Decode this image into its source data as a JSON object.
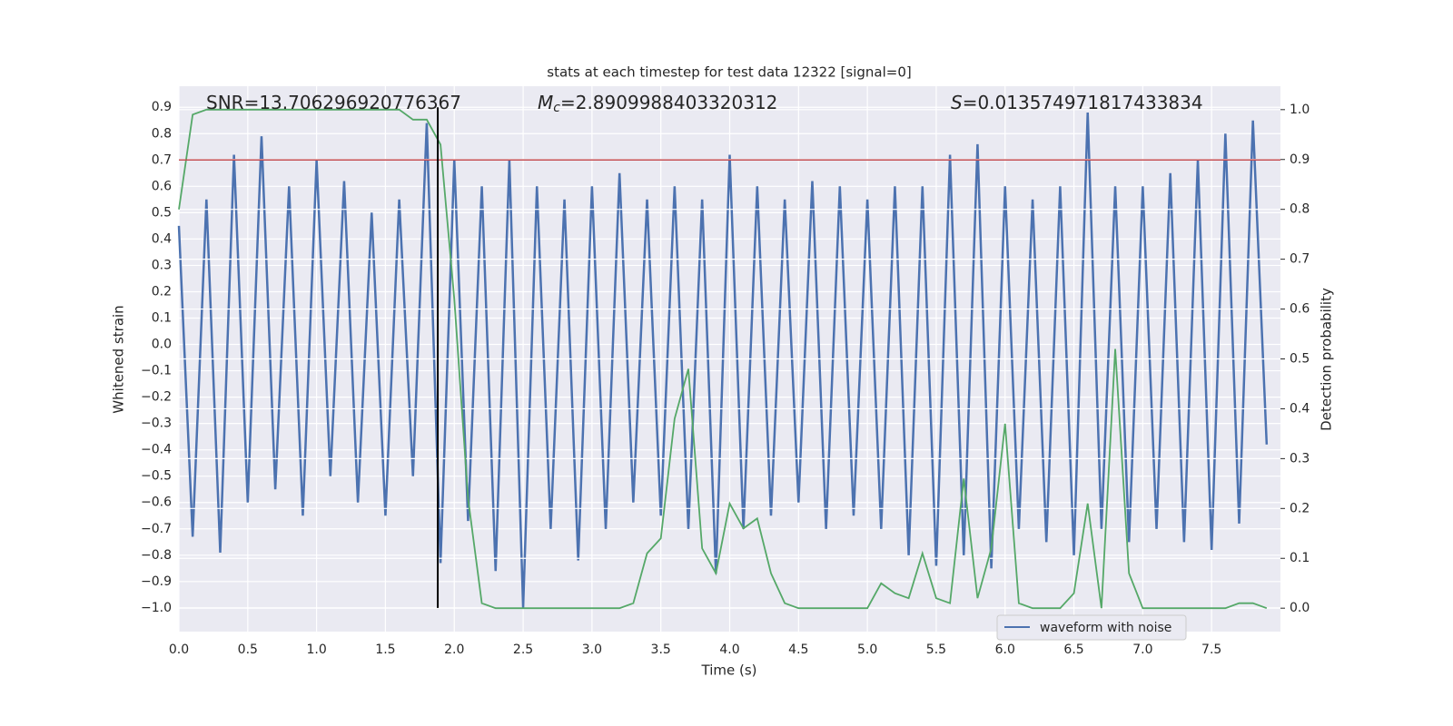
{
  "chart_data": {
    "type": "line",
    "title": "stats at each timestep for test data 12322 [signal=0]",
    "xlabel": "Time (s)",
    "ylabel": "Whitened strain",
    "y2label": "Detection probability",
    "annotations": [
      {
        "symbol": "SNR",
        "value": "=13.706296920776367",
        "italic": false
      },
      {
        "symbol": "M",
        "subscript": "c",
        "value": "=2.8909988403320312",
        "italic": true
      },
      {
        "symbol": "S",
        "value": "=0.013574971817433834",
        "italic": true
      }
    ],
    "x": [
      0.0,
      0.1,
      0.2,
      0.3,
      0.4,
      0.5,
      0.6,
      0.7,
      0.8,
      0.9,
      1.0,
      1.1,
      1.2,
      1.3,
      1.4,
      1.5,
      1.6,
      1.7,
      1.8,
      1.9,
      2.0,
      2.1,
      2.2,
      2.3,
      2.4,
      2.5,
      2.6,
      2.7,
      2.8,
      2.9,
      3.0,
      3.1,
      3.2,
      3.3,
      3.4,
      3.5,
      3.6,
      3.7,
      3.8,
      3.9,
      4.0,
      4.1,
      4.2,
      4.3,
      4.4,
      4.5,
      4.6,
      4.7,
      4.8,
      4.9,
      5.0,
      5.1,
      5.2,
      5.3,
      5.4,
      5.5,
      5.6,
      5.7,
      5.8,
      5.9,
      6.0,
      6.1,
      6.2,
      6.3,
      6.4,
      6.5,
      6.6,
      6.7,
      6.8,
      6.9,
      7.0,
      7.1,
      7.2,
      7.3,
      7.4,
      7.5,
      7.6,
      7.7,
      7.8,
      7.9
    ],
    "series": [
      {
        "name": "waveform with noise",
        "color": "#4c72b0",
        "axis": "y",
        "values": [
          0.45,
          -0.73,
          0.55,
          -0.79,
          0.72,
          -0.6,
          0.79,
          -0.55,
          0.6,
          -0.65,
          0.7,
          -0.5,
          0.62,
          -0.6,
          0.5,
          -0.65,
          0.55,
          -0.5,
          0.84,
          -0.83,
          0.7,
          -0.67,
          0.6,
          -0.86,
          0.7,
          -1.0,
          0.6,
          -0.7,
          0.55,
          -0.82,
          0.6,
          -0.7,
          0.65,
          -0.6,
          0.55,
          -0.65,
          0.6,
          -0.7,
          0.55,
          -0.87,
          0.72,
          -0.7,
          0.6,
          -0.65,
          0.55,
          -0.6,
          0.62,
          -0.7,
          0.6,
          -0.65,
          0.55,
          -0.7,
          0.6,
          -0.8,
          0.6,
          -0.84,
          0.72,
          -0.8,
          0.76,
          -0.85,
          0.6,
          -0.7,
          0.55,
          -0.75,
          0.6,
          -0.8,
          0.88,
          -0.7,
          0.6,
          -0.75,
          0.6,
          -0.7,
          0.65,
          -0.75,
          0.7,
          -0.78,
          0.8,
          -0.68,
          0.85,
          -0.38
        ]
      },
      {
        "color": "#55a868",
        "axis": "y2",
        "values": [
          0.8,
          0.99,
          1.0,
          1.0,
          1.0,
          1.0,
          1.0,
          1.0,
          1.0,
          1.0,
          1.0,
          1.0,
          1.0,
          1.0,
          1.0,
          1.0,
          1.0,
          0.98,
          0.98,
          0.93,
          0.62,
          0.22,
          0.01,
          0.0,
          0.0,
          0.0,
          0.0,
          0.0,
          0.0,
          0.0,
          0.0,
          0.0,
          0.0,
          0.01,
          0.11,
          0.14,
          0.38,
          0.48,
          0.12,
          0.07,
          0.21,
          0.16,
          0.18,
          0.07,
          0.01,
          0.0,
          0.0,
          0.0,
          0.0,
          0.0,
          0.0,
          0.05,
          0.03,
          0.02,
          0.11,
          0.02,
          0.01,
          0.26,
          0.02,
          0.12,
          0.37,
          0.01,
          0.0,
          0.0,
          0.0,
          0.03,
          0.21,
          0.0,
          0.52,
          0.07,
          0.0,
          0.0,
          0.0,
          0.0,
          0.0,
          0.0,
          0.0,
          0.01,
          0.01,
          0.0
        ]
      }
    ],
    "hline": {
      "y": 0.7,
      "color": "#c44e52"
    },
    "vline": {
      "x": 1.88,
      "ymin": -1.0,
      "ymax": 0.9,
      "color": "#000000"
    },
    "xlim": [
      0,
      8
    ],
    "ylim": [
      -1.09,
      0.98
    ],
    "y2lim": [
      -0.047,
      1.047
    ],
    "xticks": [
      {
        "value": 0,
        "label": "0.0"
      },
      0.5,
      {
        "value": 1,
        "label": "1.0"
      },
      1.5,
      {
        "value": 2,
        "label": "2.0"
      },
      2.5,
      {
        "value": 3,
        "label": "3.0"
      },
      3.5,
      {
        "value": 4,
        "label": "4.0"
      },
      4.5,
      {
        "value": 5,
        "label": "5.0"
      },
      5.5,
      {
        "value": 6,
        "label": "6.0"
      },
      6.5,
      {
        "value": 7,
        "label": "7.0"
      },
      7.5
    ],
    "yticks": [
      {
        "value": -1,
        "label": "−1.0"
      },
      {
        "value": -0.9,
        "label": "−0.9"
      },
      {
        "value": -0.8,
        "label": "−0.8"
      },
      {
        "value": -0.7,
        "label": "−0.7"
      },
      {
        "value": -0.6,
        "label": "−0.6"
      },
      {
        "value": -0.5,
        "label": "−0.5"
      },
      {
        "value": -0.4,
        "label": "−0.4"
      },
      {
        "value": -0.3,
        "label": "−0.3"
      },
      {
        "value": -0.2,
        "label": "−0.2"
      },
      {
        "value": -0.1,
        "label": "−0.1"
      },
      {
        "value": 0,
        "label": "0.0"
      },
      0.1,
      0.2,
      0.3,
      0.4,
      0.5,
      0.6,
      0.7,
      0.8,
      0.9
    ],
    "y2ticks": [
      {
        "value": 0,
        "label": "0.0"
      },
      0.1,
      0.2,
      0.3,
      0.4,
      0.5,
      0.6,
      0.7,
      0.8,
      0.9,
      {
        "value": 1,
        "label": "1.0"
      }
    ],
    "grid": true,
    "legend": "lower right",
    "background": "#eaeaf2"
  }
}
